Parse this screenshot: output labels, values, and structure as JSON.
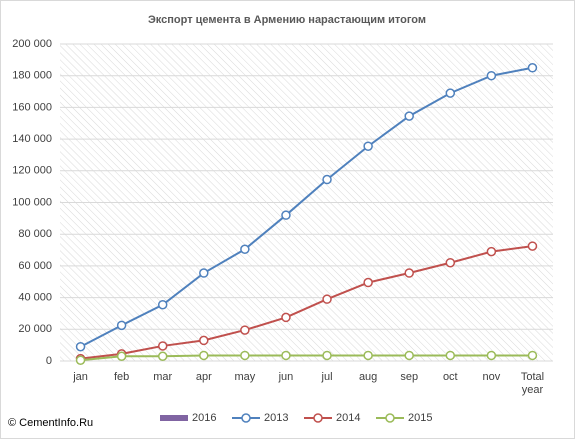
{
  "chart_data": {
    "type": "line",
    "title": "Экспорт цемента в Армению нарастающим  итогом",
    "source": "© CementInfo.Ru",
    "categories": [
      "jan",
      "feb",
      "mar",
      "apr",
      "may",
      "jun",
      "jul",
      "aug",
      "sep",
      "oct",
      "nov",
      "Total year"
    ],
    "series": [
      {
        "name": "2016",
        "color": "#8064a2",
        "values": [
          null,
          null,
          null,
          null,
          null,
          null,
          null,
          null,
          null,
          null,
          null,
          null
        ]
      },
      {
        "name": "2013",
        "color": "#4f81bd",
        "values": [
          9000,
          22500,
          35500,
          55500,
          70500,
          92000,
          114500,
          135500,
          154500,
          169000,
          180000,
          185000
        ]
      },
      {
        "name": "2014",
        "color": "#c0504d",
        "values": [
          1500,
          4500,
          9500,
          13000,
          19500,
          27500,
          39000,
          49500,
          55500,
          62000,
          69000,
          72500
        ]
      },
      {
        "name": "2015",
        "color": "#9bbb59",
        "values": [
          500,
          3000,
          3000,
          3500,
          3500,
          3500,
          3500,
          3500,
          3500,
          3500,
          3500,
          3500
        ]
      }
    ],
    "ylim": [
      0,
      200000
    ],
    "yticks": [
      {
        "value": 0,
        "label": "0"
      },
      {
        "value": 20000,
        "label": "20 000"
      },
      {
        "value": 40000,
        "label": "40 000"
      },
      {
        "value": 60000,
        "label": "60 000"
      },
      {
        "value": 80000,
        "label": "80 000"
      },
      {
        "value": 100000,
        "label": "100 000"
      },
      {
        "value": 120000,
        "label": "120 000"
      },
      {
        "value": 140000,
        "label": "140 000"
      },
      {
        "value": 160000,
        "label": "160 000"
      },
      {
        "value": 180000,
        "label": "180 000"
      },
      {
        "value": 200000,
        "label": "200 000"
      }
    ],
    "grid": true,
    "legend": "bottom"
  }
}
